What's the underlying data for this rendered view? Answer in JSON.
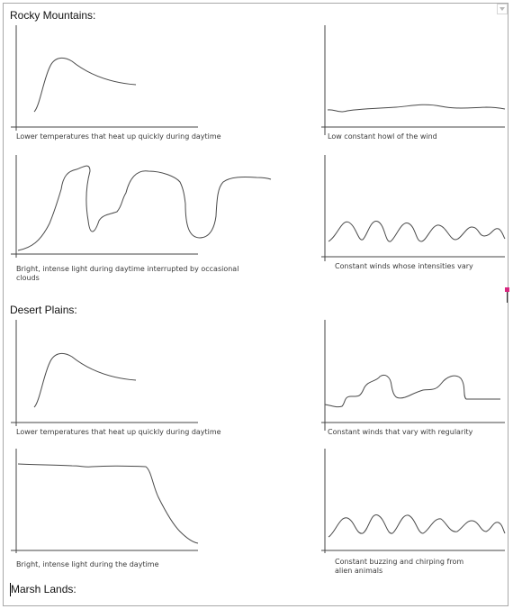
{
  "sections": {
    "rocky": "Rocky Mountains:",
    "desert": "Desert Plains:",
    "marsh": "Marsh Lands:"
  },
  "captions": {
    "rocky_temp": "Lower temperatures that heat up quickly during daytime",
    "rocky_wind": "Low constant howl of the wind",
    "rocky_light": "Bright, intense light during daytime interrupted by occasional clouds",
    "rocky_winds_vary": "Constant winds whose intensities vary",
    "desert_temp": "Lower temperatures that heat up quickly during daytime",
    "desert_wind": "Constant winds that vary with regularity",
    "desert_light": "Bright, intense light during the daytime",
    "desert_sound": "Constant buzzing and chirping from alien animals"
  },
  "colors": {
    "marker": "#d8277f",
    "frame": "#a9a9a9"
  }
}
